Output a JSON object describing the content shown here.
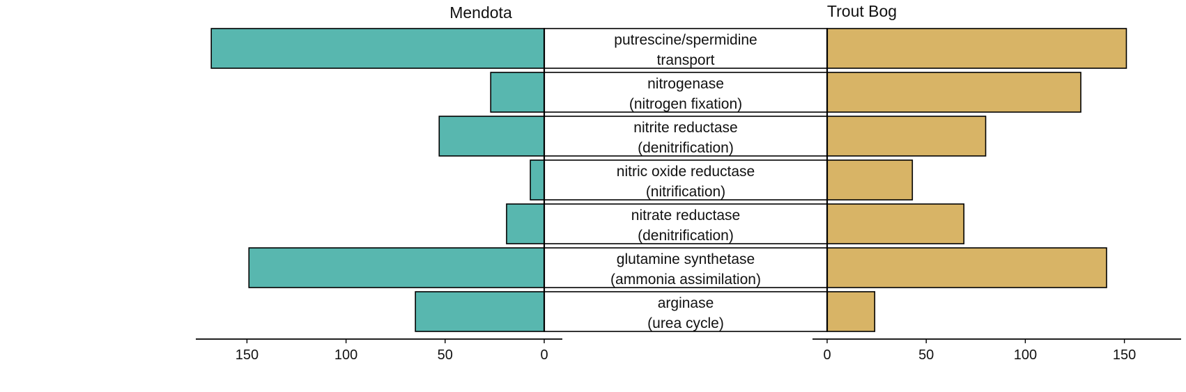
{
  "chart_data": {
    "type": "bar",
    "orientation": "horizontal-back-to-back",
    "colors": {
      "left": "#58b7af",
      "right": "#d8b466"
    },
    "categories": [
      [
        "putrescine/spermidine",
        "transport"
      ],
      [
        "nitrogenase",
        "(nitrogen fixation)"
      ],
      [
        "nitrite reductase",
        "(denitrification)"
      ],
      [
        "nitric oxide reductase",
        "(nitrification)"
      ],
      [
        "nitrate reductase",
        "(denitrification)"
      ],
      [
        "glutamine synthetase",
        "(ammonia assimilation)"
      ],
      [
        "arginase",
        "(urea cycle)"
      ]
    ],
    "series": [
      {
        "name": "Mendota",
        "values": [
          168,
          27,
          53,
          7,
          19,
          149,
          65
        ],
        "xlim": [
          0,
          175
        ]
      },
      {
        "name": "Trout Bog",
        "values": [
          151,
          128,
          80,
          43,
          69,
          141,
          24
        ],
        "xlim": [
          0,
          175
        ]
      }
    ],
    "xticks": [
      0,
      50,
      100,
      150
    ],
    "grid": false,
    "legend": "none"
  }
}
